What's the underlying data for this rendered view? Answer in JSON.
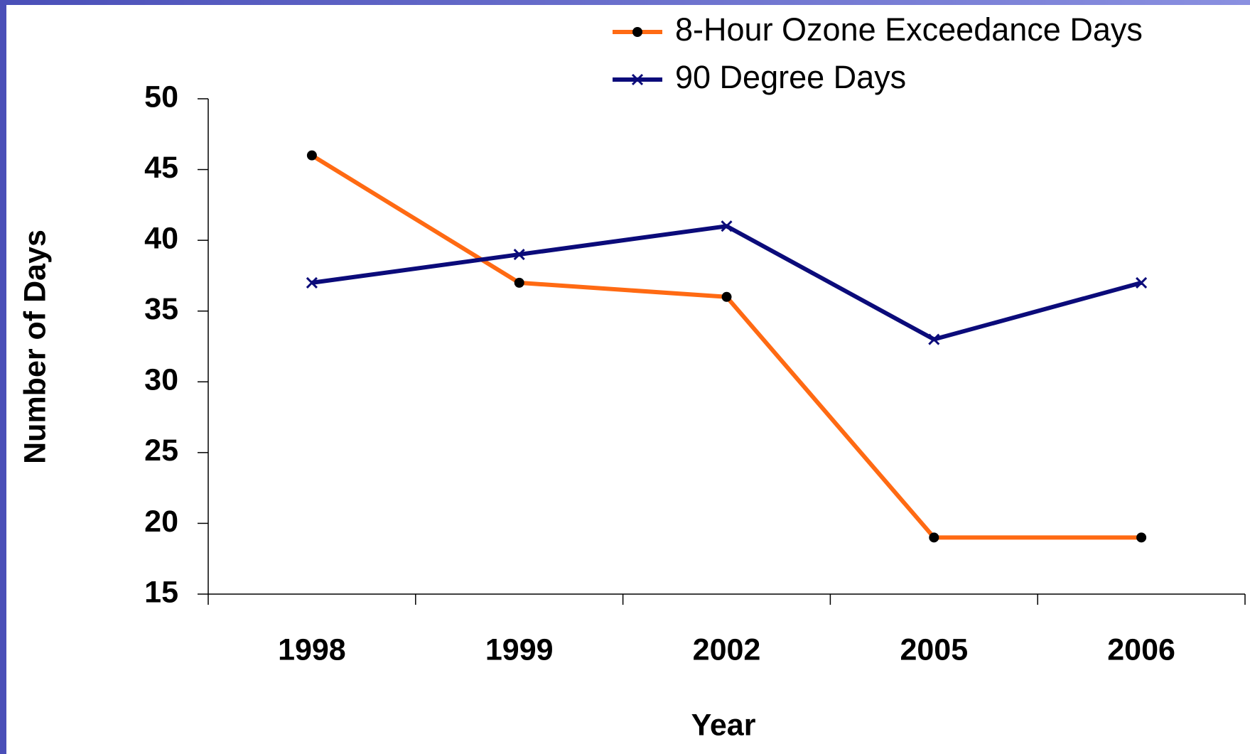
{
  "chart_data": {
    "type": "line",
    "x_label": "Year",
    "y_label": "Number of Days",
    "categories": [
      "1998",
      "1999",
      "2002",
      "2005",
      "2006"
    ],
    "series": [
      {
        "name": "8-Hour Ozone Exceedance Days",
        "color": "#ff6a13",
        "marker": "circle",
        "values": [
          46,
          37,
          36,
          19,
          19
        ]
      },
      {
        "name": "90 Degree Days",
        "color": "#0b0b7a",
        "marker": "x",
        "values": [
          37,
          39,
          41,
          33,
          37
        ]
      }
    ],
    "ylim": [
      15,
      50
    ],
    "yticks": [
      15,
      20,
      25,
      30,
      35,
      40,
      45,
      50
    ],
    "legend": "upper right",
    "grid": false
  }
}
